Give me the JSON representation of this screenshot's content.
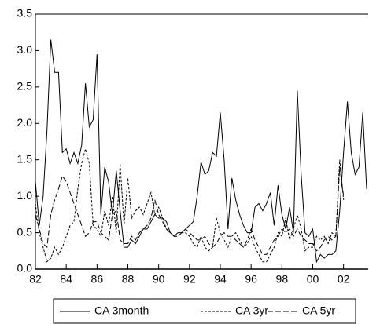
{
  "chart_data": {
    "type": "line",
    "x": [
      1982,
      1982.25,
      1982.5,
      1982.75,
      1983,
      1983.25,
      1983.5,
      1983.75,
      1984,
      1984.25,
      1984.5,
      1984.75,
      1985,
      1985.25,
      1985.5,
      1985.75,
      1986,
      1986.25,
      1986.5,
      1986.75,
      1987,
      1987.25,
      1987.5,
      1987.75,
      1988,
      1988.25,
      1988.5,
      1988.75,
      1989,
      1989.25,
      1989.5,
      1989.75,
      1990,
      1990.25,
      1990.5,
      1990.75,
      1991,
      1991.25,
      1991.5,
      1991.75,
      1992,
      1992.25,
      1992.5,
      1992.75,
      1993,
      1993.25,
      1993.5,
      1993.75,
      1994,
      1994.25,
      1994.5,
      1994.75,
      1995,
      1995.25,
      1995.5,
      1995.75,
      1996,
      1996.25,
      1996.5,
      1996.75,
      1997,
      1997.25,
      1997.5,
      1997.75,
      1998,
      1998.25,
      1998.5,
      1998.75,
      1999,
      1999.25,
      1999.5,
      1999.75,
      2000,
      2000.25,
      2000.5,
      2000.75,
      2001,
      2001.25,
      2001.5,
      2001.75,
      2002,
      2002.25,
      2002.5,
      2002.75,
      2003,
      2003.25,
      2003.5
    ],
    "series": [
      {
        "name": "CA 3month",
        "color": "#000000",
        "line_style": "solid",
        "values": [
          1.2,
          0.6,
          1.0,
          1.9,
          3.15,
          2.7,
          2.7,
          1.6,
          1.65,
          1.45,
          1.6,
          1.45,
          1.7,
          2.55,
          1.95,
          2.05,
          2.95,
          0.75,
          1.4,
          1.2,
          0.75,
          1.35,
          0.8,
          0.3,
          0.3,
          0.4,
          0.35,
          0.45,
          0.55,
          0.55,
          0.65,
          0.75,
          0.7,
          0.7,
          0.65,
          0.5,
          0.45,
          0.5,
          0.5,
          0.55,
          0.6,
          0.65,
          1.0,
          1.47,
          1.3,
          1.35,
          1.6,
          1.55,
          2.15,
          1.5,
          0.55,
          1.25,
          0.95,
          0.75,
          0.6,
          0.5,
          0.5,
          0.85,
          0.9,
          0.8,
          0.9,
          1.05,
          0.6,
          1.15,
          0.75,
          0.55,
          0.85,
          0.5,
          2.45,
          1.3,
          0.5,
          0.45,
          0.55,
          0.1,
          0.2,
          0.15,
          0.2,
          0.2,
          0.25,
          0.8,
          1.6,
          2.3,
          1.6,
          1.3,
          1.4,
          2.15,
          1.1
        ]
      },
      {
        "name": "CA 3yr",
        "color": "#000000",
        "line_style": "dotted",
        "values": [
          0.9,
          0.5,
          0.3,
          0.1,
          0.15,
          0.3,
          0.2,
          0.3,
          0.45,
          0.6,
          0.65,
          1.1,
          1.45,
          1.65,
          1.45,
          0.6,
          0.55,
          0.45,
          0.8,
          0.6,
          1.0,
          0.5,
          1.45,
          0.6,
          1.25,
          0.7,
          0.8,
          0.85,
          0.75,
          0.9,
          1.05,
          0.75,
          0.85,
          0.7,
          0.55,
          0.5,
          0.45,
          0.45,
          0.5,
          0.5,
          0.45,
          0.35,
          0.3,
          0.45,
          0.3,
          0.25,
          0.3,
          0.7,
          0.5,
          0.4,
          0.3,
          0.45,
          0.5,
          0.4,
          0.3,
          0.35,
          0.45,
          0.3,
          0.2,
          0.1,
          0.1,
          0.2,
          0.3,
          0.5,
          0.45,
          0.7,
          0.4,
          0.55,
          0.75,
          0.55,
          0.25,
          0.3,
          0.3,
          0.45,
          0.4,
          0.45,
          0.35,
          0.5,
          0.45,
          1.5,
          0.95,
          null,
          null,
          null,
          null,
          null,
          null
        ]
      },
      {
        "name": "CA 5yr",
        "color": "#000000",
        "line_style": "dashed",
        "values": [
          0.75,
          0.55,
          0.35,
          0.3,
          0.75,
          0.95,
          1.1,
          1.28,
          1.2,
          1.05,
          0.9,
          0.75,
          0.6,
          0.45,
          0.5,
          0.65,
          0.65,
          0.5,
          0.45,
          0.4,
          0.75,
          0.8,
          0.4,
          0.35,
          0.35,
          0.45,
          0.4,
          0.5,
          0.55,
          0.6,
          0.7,
          0.95,
          0.75,
          0.65,
          0.55,
          0.5,
          0.45,
          0.45,
          0.5,
          0.55,
          0.5,
          0.45,
          0.4,
          0.4,
          0.45,
          0.35,
          0.3,
          0.35,
          0.45,
          0.5,
          0.45,
          0.45,
          0.4,
          0.35,
          0.3,
          0.4,
          0.55,
          0.4,
          0.3,
          0.2,
          0.2,
          0.3,
          0.4,
          0.45,
          0.55,
          0.5,
          0.55,
          0.45,
          0.55,
          0.45,
          0.4,
          0.35,
          0.35,
          0.25,
          0.3,
          0.4,
          0.45,
          0.4,
          0.45,
          1.4,
          1.0,
          null,
          null,
          null,
          null,
          null,
          null
        ]
      }
    ],
    "xlim": [
      1982,
      2003.6
    ],
    "xticks": [
      {
        "value": 1982,
        "label": "82"
      },
      {
        "value": 1984,
        "label": "84"
      },
      {
        "value": 1986,
        "label": "86"
      },
      {
        "value": 1988,
        "label": "88"
      },
      {
        "value": 1990,
        "label": "90"
      },
      {
        "value": 1992,
        "label": "92"
      },
      {
        "value": 1994,
        "label": "94"
      },
      {
        "value": 1996,
        "label": "96"
      },
      {
        "value": 1998,
        "label": "98"
      },
      {
        "value": 2000,
        "label": "00"
      },
      {
        "value": 2002,
        "label": "02"
      }
    ],
    "ylim": [
      0,
      3.5
    ],
    "yticks": [
      {
        "value": 0,
        "label": "0.0"
      },
      {
        "value": 0.5,
        "label": "0.5"
      },
      {
        "value": 1,
        "label": "1.0"
      },
      {
        "value": 1.5,
        "label": "1.5"
      },
      {
        "value": 2,
        "label": "2.0"
      },
      {
        "value": 2.5,
        "label": "2.5"
      },
      {
        "value": 3,
        "label": "3.0"
      },
      {
        "value": 3.5,
        "label": "3.5"
      }
    ],
    "grid": false,
    "legend_position": "bottom"
  }
}
